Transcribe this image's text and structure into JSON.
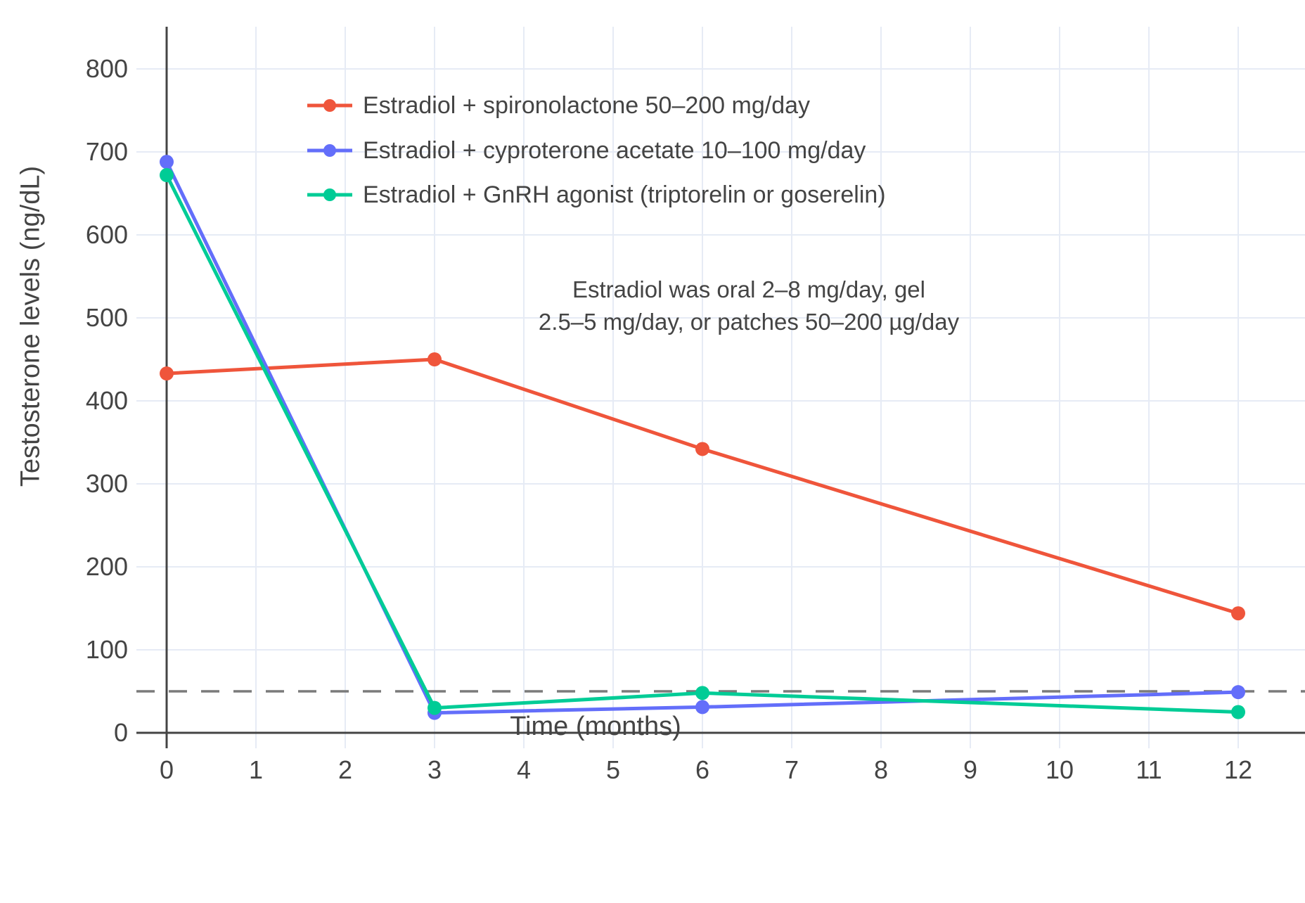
{
  "figure": {
    "background": "#ffffff",
    "text_color": "#444444",
    "grid_color": "#e6ebf5",
    "axis_color": "#444444",
    "threshold_color": "#7a7a7a"
  },
  "chart_data": {
    "type": "line",
    "title": "",
    "xlabel": "Time (months)",
    "ylabel": "Testosterone levels (ng/dL)",
    "x_ticks": [
      0,
      1,
      2,
      3,
      4,
      5,
      6,
      7,
      8,
      9,
      10,
      11,
      12
    ],
    "y_ticks": [
      0,
      100,
      200,
      300,
      400,
      500,
      600,
      700,
      800
    ],
    "xlim": [
      0,
      12.75
    ],
    "ylim": [
      0,
      850
    ],
    "grid": true,
    "legend_position": "top-left-inside",
    "threshold_line": {
      "y": 50,
      "style": "dashed"
    },
    "series": [
      {
        "name": "Estradiol + spironolactone 50–200 mg/day",
        "color": "#EF553B",
        "x": [
          0,
          3,
          6,
          12
        ],
        "values": [
          433,
          450,
          342,
          144
        ]
      },
      {
        "name": "Estradiol + cyproterone acetate 10–100 mg/day",
        "color": "#636EFA",
        "x": [
          0,
          3,
          6,
          12
        ],
        "values": [
          688,
          24,
          31,
          49
        ]
      },
      {
        "name": "Estradiol + GnRH agonist (triptorelin or goserelin)",
        "color": "#00CC96",
        "x": [
          0,
          3,
          6,
          12
        ],
        "values": [
          672,
          30,
          48,
          25
        ]
      }
    ],
    "annotation": {
      "line1": "Estradiol was oral 2–8 mg/day, gel",
      "line2": "2.5–5 mg/day, or patches 50–200 µg/day"
    }
  }
}
